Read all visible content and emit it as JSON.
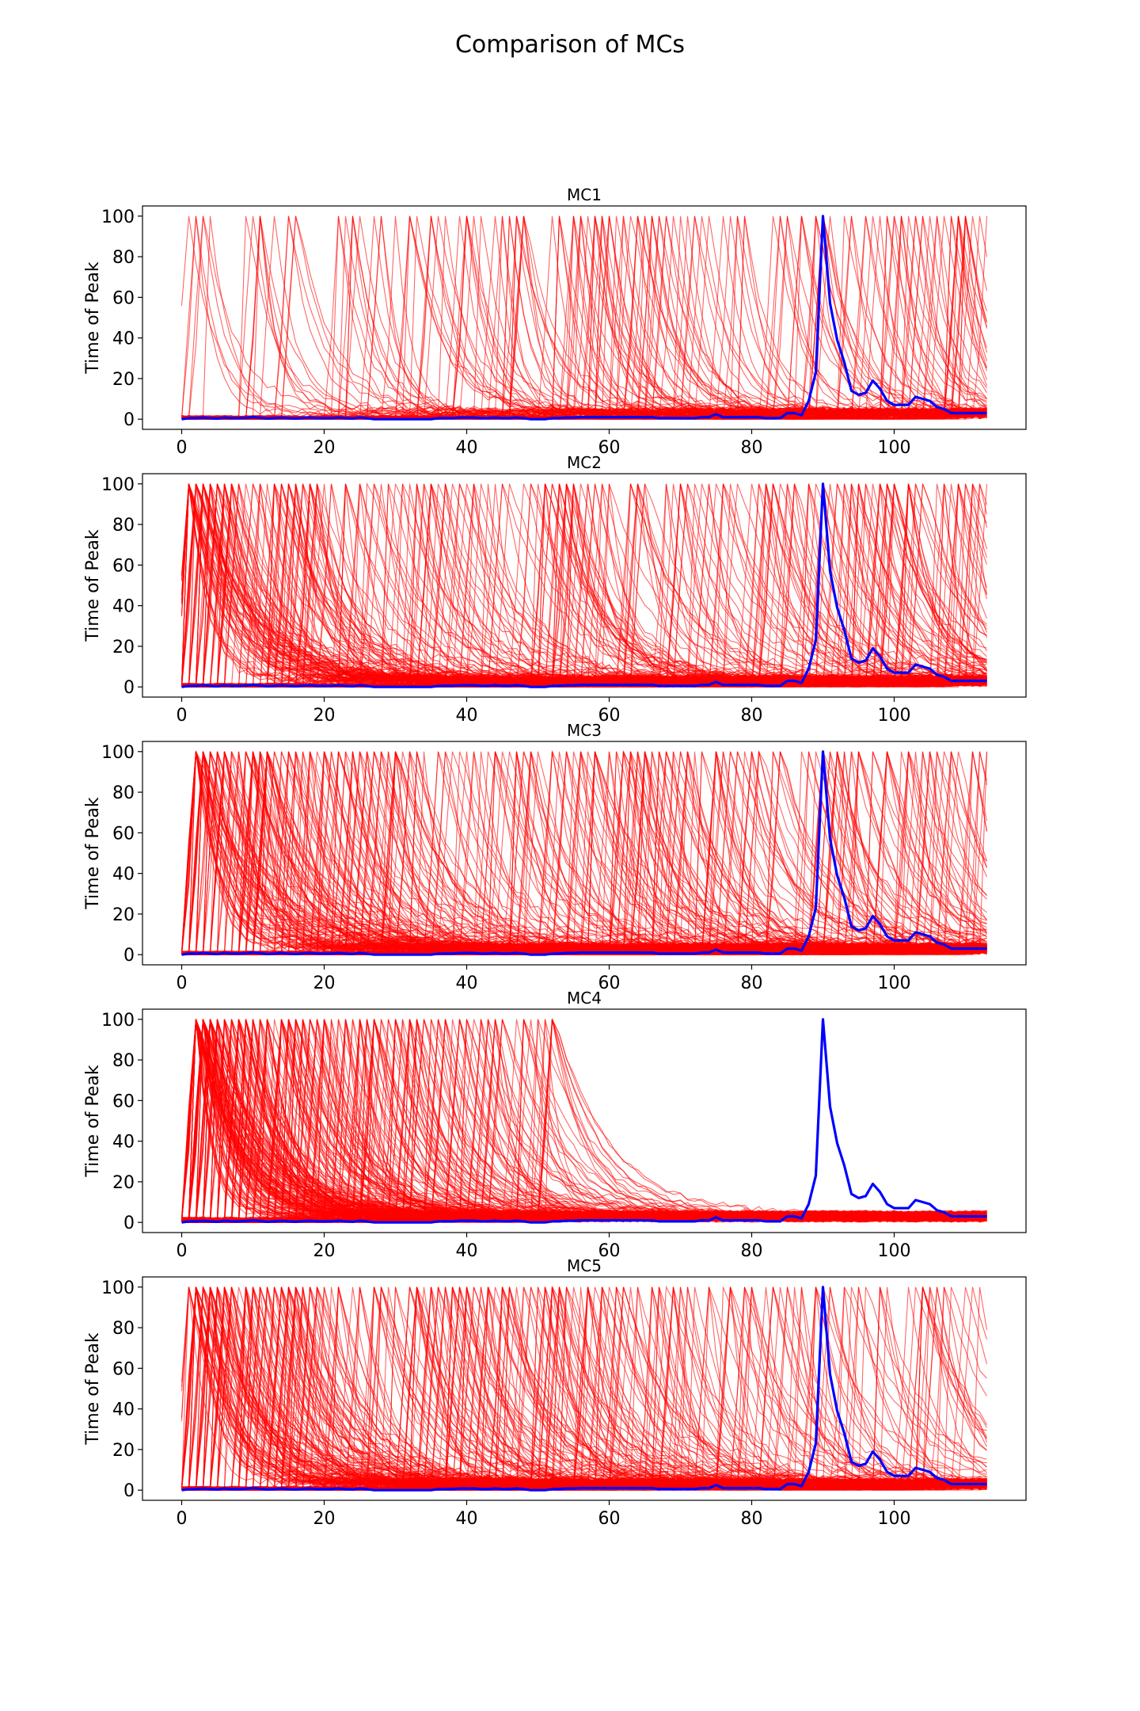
{
  "figure": {
    "title": "Comparison of MCs"
  },
  "colors": {
    "background": "#ffffff",
    "simulated": "#ff0000",
    "observed": "#0000ff"
  },
  "chart_data": [
    {
      "type": "line",
      "title": "MC1",
      "ylabel": "Time of Peak",
      "xlabel": "",
      "xlim": [
        -5.5,
        118.5
      ],
      "ylim": [
        -5,
        105
      ],
      "xticks": [
        0,
        20,
        40,
        60,
        80,
        100
      ],
      "yticks": [
        0,
        20,
        40,
        60,
        80,
        100
      ],
      "grid": false,
      "legend": "none",
      "simulated_series": {
        "count": 160,
        "first_peak_x": 1,
        "last_peak_x": 113,
        "peak_value": 100,
        "baseline": 0
      }
    },
    {
      "type": "line",
      "title": "MC2",
      "ylabel": "Time of Peak",
      "xlabel": "",
      "xlim": [
        -5.5,
        118.5
      ],
      "ylim": [
        -5,
        105
      ],
      "xticks": [
        0,
        20,
        40,
        60,
        80,
        100
      ],
      "yticks": [
        0,
        20,
        40,
        60,
        80,
        100
      ],
      "grid": false,
      "legend": "none",
      "simulated_series": {
        "count": 300,
        "first_peak_x": 1,
        "last_peak_x": 113,
        "peak_value": 100,
        "baseline": 0
      }
    },
    {
      "type": "line",
      "title": "MC3",
      "ylabel": "Time of Peak",
      "xlabel": "",
      "xlim": [
        -5.5,
        118.5
      ],
      "ylim": [
        -5,
        105
      ],
      "xticks": [
        0,
        20,
        40,
        60,
        80,
        100
      ],
      "yticks": [
        0,
        20,
        40,
        60,
        80,
        100
      ],
      "grid": false,
      "legend": "none",
      "simulated_series": {
        "count": 320,
        "first_peak_x": 2,
        "last_peak_x": 113,
        "peak_value": 100,
        "baseline": 0
      }
    },
    {
      "type": "line",
      "title": "MC4",
      "ylabel": "Time of Peak",
      "xlabel": "",
      "xlim": [
        -5.5,
        118.5
      ],
      "ylim": [
        -5,
        105
      ],
      "xticks": [
        0,
        20,
        40,
        60,
        80,
        100
      ],
      "yticks": [
        0,
        20,
        40,
        60,
        80,
        100
      ],
      "grid": false,
      "legend": "none",
      "simulated_series": {
        "count": 300,
        "first_peak_x": 2,
        "last_peak_x": 53,
        "peak_value": 100,
        "baseline": 0
      }
    },
    {
      "type": "line",
      "title": "MC5",
      "ylabel": "Time of Peak",
      "xlabel": "",
      "xlim": [
        -5.5,
        118.5
      ],
      "ylim": [
        -5,
        105
      ],
      "xticks": [
        0,
        20,
        40,
        60,
        80,
        100
      ],
      "yticks": [
        0,
        20,
        40,
        60,
        80,
        100
      ],
      "grid": false,
      "legend": "none",
      "simulated_series": {
        "count": 320,
        "first_peak_x": 1,
        "last_peak_x": 113,
        "peak_value": 100,
        "baseline": 0
      }
    }
  ],
  "observed_series": {
    "x": [
      0,
      1,
      2,
      3,
      4,
      5,
      6,
      7,
      8,
      9,
      10,
      11,
      12,
      13,
      14,
      15,
      16,
      17,
      18,
      19,
      20,
      21,
      22,
      23,
      24,
      25,
      26,
      27,
      28,
      29,
      30,
      31,
      32,
      33,
      34,
      35,
      36,
      37,
      38,
      39,
      40,
      41,
      42,
      43,
      44,
      45,
      46,
      47,
      48,
      49,
      50,
      51,
      52,
      53,
      54,
      55,
      56,
      57,
      58,
      59,
      60,
      61,
      62,
      63,
      64,
      65,
      66,
      67,
      68,
      69,
      70,
      71,
      72,
      73,
      74,
      75,
      76,
      77,
      78,
      79,
      80,
      81,
      82,
      83,
      84,
      85,
      86,
      87,
      88,
      89,
      90,
      91,
      92,
      93,
      94,
      95,
      96,
      97,
      98,
      99,
      100,
      101,
      102,
      103,
      104,
      105,
      106,
      107,
      108,
      109,
      110,
      111,
      112,
      113
    ],
    "y": [
      0,
      0.5,
      0.5,
      0.8,
      0.5,
      0.3,
      0.8,
      0.5,
      0.5,
      0.7,
      1,
      0.7,
      0.3,
      0.5,
      0.8,
      0.5,
      0.3,
      0.6,
      0.8,
      0.5,
      0.5,
      0.5,
      0.8,
      0.5,
      0.3,
      0.8,
      0.5,
      0,
      0,
      0,
      0,
      0,
      0,
      0,
      0,
      0,
      0.5,
      0.5,
      0.5,
      0.8,
      0.8,
      0.8,
      0.5,
      0.5,
      0.8,
      0.5,
      0.5,
      0.8,
      0.5,
      0,
      0,
      0,
      0.5,
      0.5,
      0.8,
      0.8,
      1,
      1,
      1,
      1,
      1,
      1,
      1,
      1,
      1,
      1,
      1,
      0.5,
      0.5,
      0.5,
      0.5,
      0.5,
      0.5,
      1,
      1,
      2.5,
      1,
      1,
      1,
      1,
      1,
      1,
      0.5,
      0.5,
      0.5,
      3,
      3,
      2,
      9,
      23,
      100,
      57,
      39,
      28,
      14,
      12,
      13,
      19,
      15,
      9,
      7,
      7,
      7,
      11,
      10,
      9,
      6,
      5,
      3,
      3,
      3,
      3,
      3,
      3
    ]
  }
}
